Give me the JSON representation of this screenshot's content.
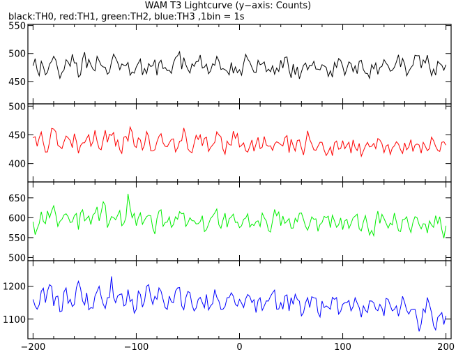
{
  "title": "WAM T3 Lightcurve (y−axis: Counts)",
  "subtitle": "black:TH0, red:TH1, green:TH2, blue:TH3 ,1bin = 1s",
  "chart_data": {
    "type": "line",
    "xlim": [
      -205,
      205
    ],
    "x_ticks": [
      -200,
      -100,
      0,
      100,
      200
    ],
    "x_tick_labels": [
      "−200",
      "−100",
      "0",
      "100",
      "200"
    ],
    "grid": false,
    "series": [
      {
        "name": "TH0",
        "color": "#000000",
        "ylim": [
          410,
          552
        ],
        "y_ticks": [
          450,
          500,
          550
        ],
        "y_tick_labels": [
          "450",
          "500",
          "550"
        ],
        "x_start": -200,
        "x_step": 4,
        "values": [
          478,
          470,
          486,
          462,
          481,
          495,
          472,
          466,
          489,
          477,
          483,
          458,
          491,
          474,
          480,
          469,
          487,
          476,
          463,
          485,
          492,
          471,
          479,
          484,
          467,
          476,
          490,
          473,
          482,
          478,
          461,
          488,
          475,
          470,
          483,
          496,
          472,
          480,
          465,
          477,
          486,
          474,
          481,
          469,
          479,
          487,
          473,
          468,
          484,
          476,
          471,
          482,
          490,
          475,
          466,
          480,
          485,
          472,
          478,
          474,
          488,
          493,
          470,
          481,
          476,
          467,
          483,
          479,
          486,
          472,
          480,
          475,
          469,
          484,
          491,
          477,
          473,
          482,
          478,
          486,
          471,
          464,
          480,
          483,
          475,
          489,
          478,
          470,
          485,
          476,
          481,
          468,
          479,
          496,
          474,
          483,
          477,
          472,
          486,
          479,
          480
        ]
      },
      {
        "name": "TH1",
        "color": "#ff0000",
        "ylim": [
          368,
          504
        ],
        "y_ticks": [
          400,
          450,
          500
        ],
        "y_tick_labels": [
          "400",
          "450",
          "500"
        ],
        "x_start": -200,
        "x_step": 4,
        "values": [
          445,
          430,
          455,
          420,
          438,
          460,
          432,
          426,
          448,
          440,
          452,
          418,
          436,
          444,
          430,
          458,
          426,
          442,
          437,
          449,
          431,
          424,
          446,
          439,
          455,
          428,
          441,
          433,
          447,
          422,
          438,
          452,
          430,
          436,
          443,
          427,
          440,
          449,
          421,
          435,
          442,
          431,
          446,
          428,
          437,
          450,
          425,
          439,
          432,
          444,
          429,
          436,
          420,
          441,
          434,
          426,
          447,
          430,
          423,
          438,
          433,
          445,
          419,
          431,
          440,
          427,
          435,
          442,
          424,
          430,
          437,
          414,
          429,
          436,
          425,
          440,
          432,
          418,
          428,
          435,
          422,
          437,
          430,
          426,
          441,
          419,
          433,
          427,
          438,
          424,
          436,
          429,
          421,
          434,
          418,
          430,
          426,
          440,
          423,
          437,
          432
        ]
      },
      {
        "name": "TH2",
        "color": "#00ee00",
        "ylim": [
          492,
          690
        ],
        "y_ticks": [
          500,
          550,
          600,
          650
        ],
        "y_tick_labels": [
          "500",
          "550",
          "600",
          "650"
        ],
        "x_start": -200,
        "x_step": 4,
        "values": [
          590,
          572,
          615,
          585,
          600,
          630,
          578,
          596,
          610,
          588,
          605,
          570,
          620,
          598,
          583,
          612,
          592,
          640,
          575,
          603,
          595,
          618,
          586,
          660,
          600,
          580,
          612,
          594,
          606,
          574,
          598,
          620,
          588,
          602,
          583,
          596,
          610,
          578,
          600,
          592,
          585,
          605,
          570,
          598,
          612,
          582,
          594,
          576,
          602,
          588,
          575,
          596,
          610,
          584,
          590,
          578,
          600,
          568,
          592,
          605,
          580,
          586,
          598,
          574,
          590,
          612,
          578,
          584,
          596,
          566,
          588,
          600,
          575,
          592,
          582,
          570,
          596,
          585,
          604,
          572,
          590,
          580,
          568,
          594,
          586,
          598,
          574,
          582,
          590,
          565,
          596,
          578,
          588,
          600,
          572,
          584,
          592,
          576,
          586,
          570,
          580
        ]
      },
      {
        "name": "TH3",
        "color": "#0000ff",
        "ylim": [
          1040,
          1278
        ],
        "y_ticks": [
          1100,
          1200
        ],
        "y_tick_labels": [
          "1100",
          "1200"
        ],
        "x_start": -200,
        "x_step": 4,
        "values": [
          1160,
          1130,
          1185,
          1150,
          1205,
          1140,
          1170,
          1125,
          1195,
          1160,
          1145,
          1215,
          1155,
          1180,
          1135,
          1170,
          1200,
          1145,
          1165,
          1230,
          1150,
          1175,
          1140,
          1190,
          1160,
          1130,
          1175,
          1155,
          1205,
          1145,
          1160,
          1185,
          1135,
          1170,
          1150,
          1195,
          1140,
          1165,
          1180,
          1125,
          1160,
          1150,
          1175,
          1140,
          1190,
          1155,
          1130,
          1165,
          1180,
          1145,
          1160,
          1135,
          1175,
          1150,
          1120,
          1165,
          1140,
          1155,
          1180,
          1130,
          1150,
          1170,
          1125,
          1145,
          1160,
          1110,
          1150,
          1135,
          1165,
          1120,
          1155,
          1140,
          1130,
          1160,
          1115,
          1145,
          1150,
          1125,
          1165,
          1135,
          1140,
          1120,
          1155,
          1130,
          1145,
          1110,
          1160,
          1125,
          1140,
          1135,
          1150,
          1115,
          1130,
          1100,
          1085,
          1120,
          1145,
          1080,
          1105,
          1120,
          1110
        ]
      }
    ]
  }
}
